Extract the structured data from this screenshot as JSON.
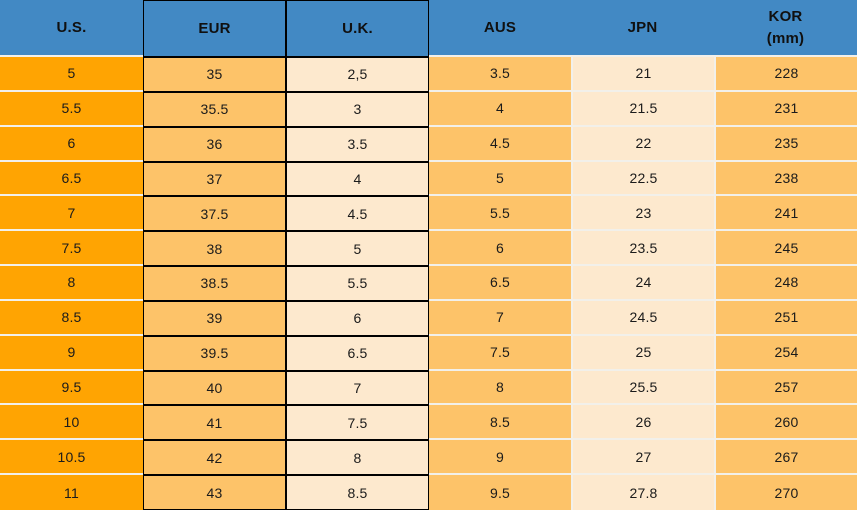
{
  "chart_data": {
    "type": "table",
    "columns": [
      "U.S.",
      "EUR",
      "U.K.",
      "AUS",
      "JPN",
      "KOR (mm)"
    ],
    "rows": [
      [
        "5",
        "35",
        "2,5",
        "3.5",
        "21",
        "228"
      ],
      [
        "5.5",
        "35.5",
        "3",
        "4",
        "21.5",
        "231"
      ],
      [
        "6",
        "36",
        "3.5",
        "4.5",
        "22",
        "235"
      ],
      [
        "6.5",
        "37",
        "4",
        "5",
        "22.5",
        "238"
      ],
      [
        "7",
        "37.5",
        "4.5",
        "5.5",
        "23",
        "241"
      ],
      [
        "7.5",
        "38",
        "5",
        "6",
        "23.5",
        "245"
      ],
      [
        "8",
        "38.5",
        "5.5",
        "6.5",
        "24",
        "248"
      ],
      [
        "8.5",
        "39",
        "6",
        "7",
        "24.5",
        "251"
      ],
      [
        "9",
        "39.5",
        "6.5",
        "7.5",
        "25",
        "254"
      ],
      [
        "9.5",
        "40",
        "7",
        "8",
        "25.5",
        "257"
      ],
      [
        "10",
        "41",
        "7.5",
        "8.5",
        "26",
        "260"
      ],
      [
        "10.5",
        "42",
        "8",
        "9",
        "27",
        "267"
      ],
      [
        "11",
        "43",
        "8.5",
        "9.5",
        "27.8",
        "270"
      ]
    ]
  },
  "table": {
    "header": {
      "us": "U.S.",
      "eur": "EUR",
      "uk": "U.K.",
      "aus": "AUS",
      "jpn": "JPN",
      "kor_line1": "KOR",
      "kor_line2": "(mm)"
    }
  },
  "colors": {
    "header_blue": "#4289C4",
    "us_orange": "#FFA402",
    "light_orange": "#FDC369",
    "cream": "#FDE9CE",
    "separator": "#F2F0EA",
    "border_black": "#000000"
  }
}
